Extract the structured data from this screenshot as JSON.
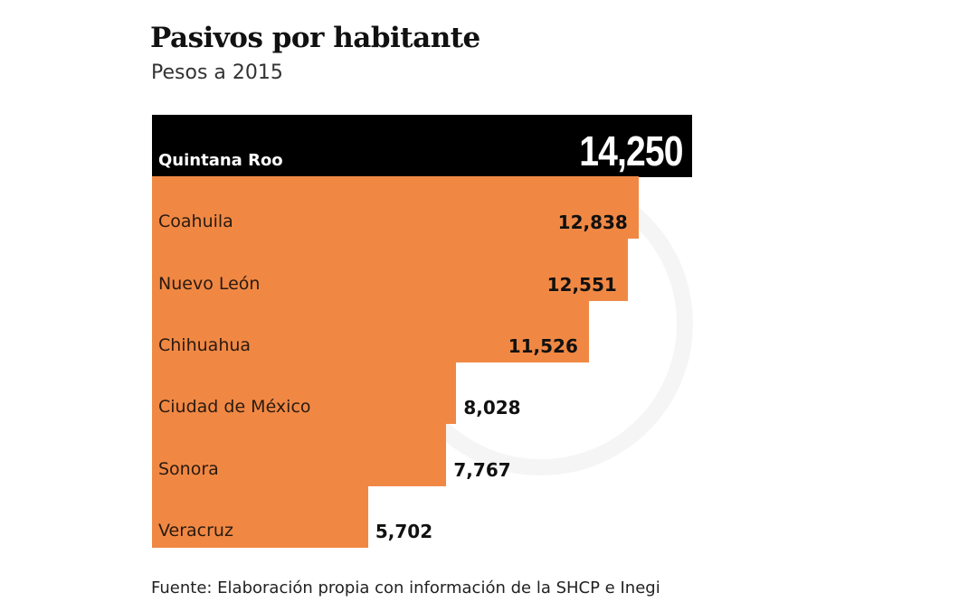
{
  "chart_data": {
    "type": "bar",
    "orientation": "horizontal",
    "title": "Pasivos por habitante",
    "subtitle": "Pesos a 2015",
    "source": "Fuente: Elaboración propia con información de la SHCP e Inegi",
    "categories": [
      "Quintana Roo",
      "Coahuila",
      "Nuevo León",
      "Chihuahua",
      "Ciudad de México",
      "Sonora",
      "Veracruz"
    ],
    "values": [
      14250,
      12838,
      12551,
      11526,
      8028,
      7767,
      5702
    ],
    "value_labels": [
      "14,250",
      "12,838",
      "12,551",
      "11,526",
      "8,028",
      "7,767",
      "5,702"
    ],
    "xlim": [
      0,
      14250
    ],
    "grid": false,
    "colors": {
      "highlight": "#000000",
      "bar": "#F08844"
    }
  }
}
